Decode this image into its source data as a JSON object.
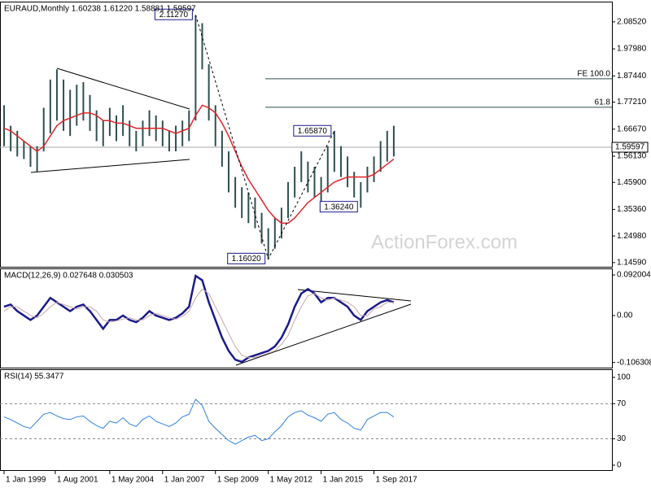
{
  "chart_data": {
    "type": "financial",
    "x": [
      "1999-01",
      "1999-05",
      "1999-09",
      "2000-01",
      "2000-05",
      "2000-09",
      "2001-01",
      "2001-05",
      "2001-09",
      "2002-01",
      "2002-05",
      "2002-09",
      "2003-01",
      "2003-05",
      "2003-09",
      "2004-01",
      "2004-05",
      "2004-09",
      "2005-01",
      "2005-05",
      "2005-09",
      "2006-01",
      "2006-05",
      "2006-09",
      "2007-01",
      "2007-05",
      "2007-09",
      "2008-01",
      "2008-05",
      "2008-09",
      "2009-01",
      "2009-05",
      "2009-09",
      "2010-01",
      "2010-05",
      "2010-09",
      "2011-01",
      "2011-05",
      "2011-09",
      "2012-01",
      "2012-05",
      "2012-09",
      "2013-01",
      "2013-05",
      "2013-09",
      "2014-01",
      "2014-05",
      "2014-09",
      "2015-01",
      "2015-05",
      "2015-09",
      "2016-01",
      "2016-05",
      "2016-09",
      "2017-01",
      "2017-05",
      "2017-09",
      "2018-01",
      "2018-05",
      "2018-09"
    ],
    "xlim": [
      "1999-01",
      "2018-12"
    ],
    "xticks": [
      {
        "value": "1999-01",
        "label": "1 Jan 1999"
      },
      {
        "value": "2001-08",
        "label": "1 Aug 2001"
      },
      {
        "value": "2004-05",
        "label": "1 May 2004"
      },
      {
        "value": "2007-01",
        "label": "1 Jan 2007"
      },
      {
        "value": "2009-09",
        "label": "1 Sep 2009"
      },
      {
        "value": "2012-05",
        "label": "1 May 2012"
      },
      {
        "value": "2015-01",
        "label": "1 Jan 2015"
      },
      {
        "value": "2017-09",
        "label": "1 Sep 2017"
      }
    ],
    "panels": [
      {
        "type": "hilo",
        "title": "EURAUD,Monthly  1.60238 1.61220 1.58881 1.59597",
        "ylim": [
          1.136,
          2.161
        ],
        "yticks": [
          {
            "value": 2.0852,
            "label": "2.08520"
          },
          {
            "value": 1.9798,
            "label": "1.97980"
          },
          {
            "value": 1.8744,
            "label": "1.87440"
          },
          {
            "value": 1.7721,
            "label": "1.77210"
          },
          {
            "value": 1.6667,
            "label": "1.66670"
          },
          {
            "value": 1.5613,
            "label": "1.56130"
          },
          {
            "value": 1.459,
            "label": "1.45900"
          },
          {
            "value": 1.3536,
            "label": "1.35360"
          },
          {
            "value": 1.2498,
            "label": "1.24980"
          },
          {
            "value": 1.1459,
            "label": "1.14590"
          }
        ],
        "series": [
          {
            "type": "hilo",
            "color": "#2f4f4f",
            "low": [
              1.6,
              1.58,
              1.56,
              1.55,
              1.52,
              1.5,
              1.58,
              1.65,
              1.7,
              1.66,
              1.64,
              1.68,
              1.7,
              1.66,
              1.62,
              1.6,
              1.64,
              1.62,
              1.64,
              1.6,
              1.58,
              1.6,
              1.64,
              1.62,
              1.6,
              1.58,
              1.58,
              1.6,
              1.62,
              1.7,
              1.9,
              1.7,
              1.6,
              1.52,
              1.42,
              1.36,
              1.32,
              1.3,
              1.28,
              1.22,
              1.16,
              1.2,
              1.24,
              1.32,
              1.4,
              1.46,
              1.42,
              1.4,
              1.38,
              1.42,
              1.5,
              1.48,
              1.44,
              1.4,
              1.36,
              1.42,
              1.46,
              1.5,
              1.54,
              1.56
            ],
            "high": [
              1.76,
              1.68,
              1.66,
              1.62,
              1.6,
              1.6,
              1.75,
              1.86,
              1.9,
              1.86,
              1.82,
              1.84,
              1.85,
              1.8,
              1.74,
              1.7,
              1.75,
              1.72,
              1.76,
              1.7,
              1.66,
              1.7,
              1.74,
              1.72,
              1.7,
              1.66,
              1.68,
              1.7,
              1.74,
              2.11,
              2.08,
              1.92,
              1.76,
              1.66,
              1.58,
              1.48,
              1.44,
              1.42,
              1.4,
              1.34,
              1.28,
              1.32,
              1.36,
              1.46,
              1.52,
              1.58,
              1.54,
              1.52,
              1.48,
              1.6,
              1.66,
              1.6,
              1.56,
              1.5,
              1.46,
              1.52,
              1.56,
              1.62,
              1.66,
              1.68
            ]
          },
          {
            "type": "line",
            "color": "#e0252b",
            "values": [
              1.67,
              1.66,
              1.64,
              1.62,
              1.6,
              1.58,
              1.6,
              1.64,
              1.68,
              1.7,
              1.71,
              1.72,
              1.73,
              1.73,
              1.72,
              1.7,
              1.7,
              1.69,
              1.69,
              1.68,
              1.67,
              1.67,
              1.67,
              1.67,
              1.67,
              1.66,
              1.65,
              1.66,
              1.67,
              1.72,
              1.76,
              1.75,
              1.73,
              1.69,
              1.64,
              1.58,
              1.52,
              1.47,
              1.43,
              1.39,
              1.35,
              1.32,
              1.3,
              1.3,
              1.32,
              1.35,
              1.38,
              1.4,
              1.42,
              1.44,
              1.46,
              1.47,
              1.48,
              1.48,
              1.48,
              1.48,
              1.49,
              1.51,
              1.53,
              1.55
            ]
          }
        ],
        "last": 1.59597,
        "levels": [
          {
            "label": "FE 100.0",
            "value": 1.863
          },
          {
            "label": "61.8",
            "value": 1.752
          }
        ],
        "annotations": [
          {
            "label": "2.11270",
            "value": 2.1127,
            "x": "2008-09"
          },
          {
            "label": "1.65870",
            "value": 1.6587,
            "x": "2015-09"
          },
          {
            "label": "1.36240",
            "value": 1.3624,
            "x": "2017-01"
          },
          {
            "label": "1.16020",
            "value": 1.1602,
            "x": "2012-05"
          }
        ],
        "watermark": "ActionForex.com"
      },
      {
        "type": "line",
        "title": "MACD(12,26,9) 0.027648 0.030503",
        "ylim": [
          -0.118,
          0.105
        ],
        "yticks": [
          0.092004,
          {
            "value": 0,
            "label": "0.00"
          },
          -0.106308
        ],
        "series": [
          {
            "type": "line",
            "color": "#1a1a8c",
            "width": 2.5,
            "values": [
              0.02,
              0.025,
              0.01,
              0.0,
              -0.01,
              0.0,
              0.02,
              0.04,
              0.03,
              0.02,
              0.01,
              0.02,
              0.025,
              0.01,
              -0.01,
              -0.03,
              -0.01,
              -0.01,
              0.0,
              -0.01,
              -0.015,
              -0.005,
              0.01,
              0.0,
              -0.005,
              -0.01,
              -0.005,
              0.005,
              0.02,
              0.09,
              0.08,
              0.03,
              -0.01,
              -0.05,
              -0.08,
              -0.1,
              -0.105,
              -0.095,
              -0.09,
              -0.085,
              -0.08,
              -0.07,
              -0.05,
              -0.02,
              0.02,
              0.05,
              0.06,
              0.05,
              0.03,
              0.04,
              0.04,
              0.03,
              0.02,
              0.0,
              -0.01,
              0.01,
              0.02,
              0.03,
              0.035,
              0.03
            ]
          },
          {
            "type": "line",
            "color": "#c8a8a8",
            "width": 1,
            "values": [
              0.01,
              0.02,
              0.02,
              0.01,
              0.0,
              -0.005,
              0.005,
              0.02,
              0.03,
              0.025,
              0.02,
              0.015,
              0.02,
              0.02,
              0.01,
              -0.01,
              -0.015,
              -0.012,
              -0.008,
              -0.005,
              -0.01,
              -0.01,
              0.0,
              0.005,
              0.0,
              -0.005,
              -0.008,
              -0.002,
              0.01,
              0.04,
              0.06,
              0.05,
              0.02,
              -0.01,
              -0.04,
              -0.07,
              -0.09,
              -0.095,
              -0.095,
              -0.09,
              -0.085,
              -0.08,
              -0.065,
              -0.045,
              -0.01,
              0.02,
              0.045,
              0.05,
              0.04,
              0.035,
              0.04,
              0.035,
              0.03,
              0.02,
              0.0,
              0.0,
              0.015,
              0.02,
              0.03,
              0.03
            ]
          }
        ]
      },
      {
        "type": "line",
        "title": "RSI(14) 55.3477",
        "ylim": [
          -5.6,
          108.3
        ],
        "yticks": [
          100,
          70,
          30,
          0
        ],
        "levels": [
          70,
          30
        ],
        "series": [
          {
            "type": "line",
            "color": "#2f7fe0",
            "width": 1,
            "values": [
              55,
              52,
              48,
              44,
              42,
              50,
              58,
              60,
              56,
              53,
              52,
              55,
              56,
              50,
              45,
              42,
              50,
              48,
              54,
              47,
              44,
              52,
              56,
              50,
              47,
              44,
              48,
              55,
              58,
              75,
              68,
              50,
              42,
              35,
              28,
              24,
              28,
              32,
              34,
              28,
              30,
              38,
              45,
              55,
              60,
              62,
              57,
              54,
              50,
              58,
              60,
              52,
              48,
              42,
              40,
              52,
              56,
              60,
              60,
              55
            ]
          }
        ]
      }
    ]
  }
}
